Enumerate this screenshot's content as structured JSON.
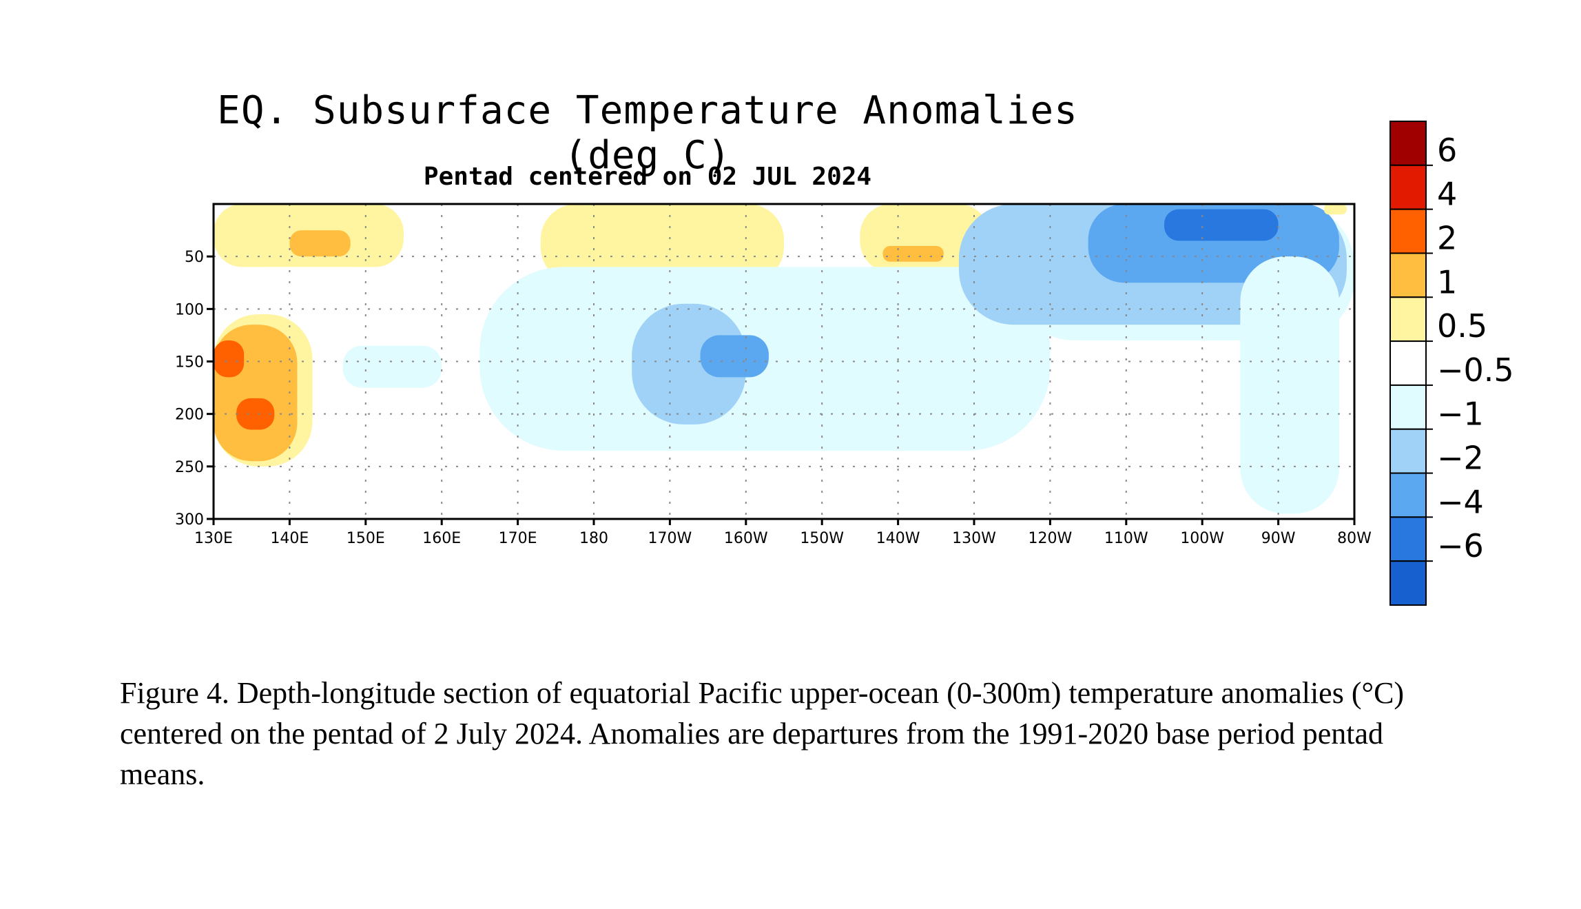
{
  "chart_data": {
    "type": "heatmap",
    "title": "EQ. Subsurface Temperature Anomalies (deg C)",
    "subtitle": "Pentad centered on 02 JUL 2024",
    "x_ticks": [
      "130E",
      "140E",
      "150E",
      "160E",
      "170E",
      "180",
      "170W",
      "160W",
      "150W",
      "140W",
      "130W",
      "120W",
      "110W",
      "100W",
      "90W",
      "80W"
    ],
    "x_range_deg_east": [
      130,
      280
    ],
    "y_ticks": [
      "50",
      "100",
      "150",
      "200",
      "250",
      "300"
    ],
    "y_range_m": [
      300,
      0
    ],
    "grid": true,
    "colorbar": {
      "position": "right",
      "labels": [
        "6",
        "4",
        "2",
        "1",
        "0.5",
        "−0.5",
        "−1",
        "−2",
        "−4",
        "−6"
      ],
      "levels": [
        6,
        4,
        2,
        1,
        0.5,
        -0.5,
        -1,
        -2,
        -4,
        -6
      ],
      "colors": [
        "#a00000",
        "#e21b00",
        "#ff6000",
        "#ffbe40",
        "#fff5a0",
        "#ffffff",
        "#e0fcff",
        "#a0d2f8",
        "#5ca8f0",
        "#2878e0",
        "#1660d0"
      ]
    },
    "regions": [
      {
        "anomaly": 0.75,
        "lon": [
          130,
          155
        ],
        "depth": [
          0,
          60
        ]
      },
      {
        "anomaly": 1.5,
        "lon": [
          140,
          148
        ],
        "depth": [
          25,
          50
        ]
      },
      {
        "anomaly": 0.75,
        "lon": [
          173,
          205
        ],
        "depth": [
          0,
          75
        ]
      },
      {
        "anomaly": 0.75,
        "lon": [
          215,
          232
        ],
        "depth": [
          0,
          65
        ]
      },
      {
        "anomaly": 1.5,
        "lon": [
          218,
          226
        ],
        "depth": [
          40,
          55
        ]
      },
      {
        "anomaly": 0.75,
        "lon": [
          130,
          143
        ],
        "depth": [
          105,
          250
        ]
      },
      {
        "anomaly": 1.5,
        "lon": [
          130,
          141
        ],
        "depth": [
          115,
          245
        ]
      },
      {
        "anomaly": 3,
        "lon": [
          130,
          134
        ],
        "depth": [
          130,
          165
        ]
      },
      {
        "anomaly": 3,
        "lon": [
          133,
          138
        ],
        "depth": [
          185,
          215
        ]
      },
      {
        "anomaly": -0.75,
        "lon": [
          147,
          160
        ],
        "depth": [
          135,
          175
        ]
      },
      {
        "anomaly": -0.75,
        "lon": [
          165,
          240
        ],
        "depth": [
          60,
          235
        ]
      },
      {
        "anomaly": -1.5,
        "lon": [
          185,
          200
        ],
        "depth": [
          95,
          210
        ]
      },
      {
        "anomaly": -3,
        "lon": [
          194,
          203
        ],
        "depth": [
          125,
          165
        ]
      },
      {
        "anomaly": -0.75,
        "lon": [
          235,
          280
        ],
        "depth": [
          0,
          130
        ]
      },
      {
        "anomaly": -1.5,
        "lon": [
          228,
          279
        ],
        "depth": [
          0,
          115
        ]
      },
      {
        "anomaly": -3,
        "lon": [
          245,
          278
        ],
        "depth": [
          0,
          75
        ]
      },
      {
        "anomaly": -4.5,
        "lon": [
          255,
          270
        ],
        "depth": [
          5,
          35
        ]
      },
      {
        "anomaly": -0.75,
        "lon": [
          265,
          278
        ],
        "depth": [
          50,
          295
        ]
      },
      {
        "anomaly": 0.75,
        "lon": [
          276,
          279
        ],
        "depth": [
          0,
          10
        ]
      }
    ]
  },
  "caption": "Figure 4. Depth-longitude section of equatorial Pacific upper-ocean (0-300m) temperature anomalies (°C) centered on the pentad of 2 July 2024. Anomalies are departures from the 1991-2020 base period pentad means."
}
